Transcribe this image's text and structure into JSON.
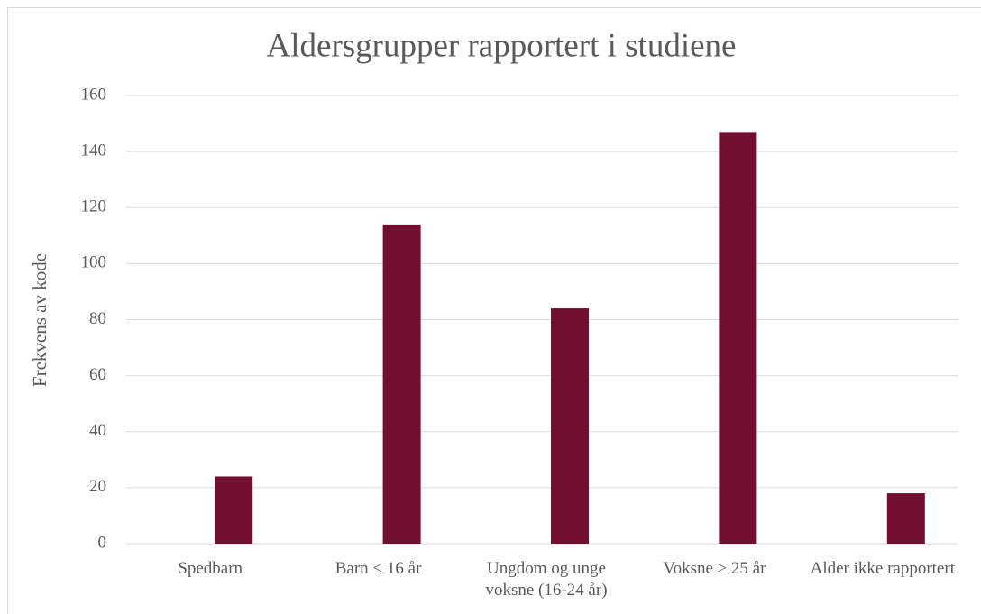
{
  "chart_data": {
    "type": "bar",
    "title": "Aldersgrupper rapportert i studiene",
    "y_label": "Frekvens av kode",
    "categories": [
      "Spedbarn",
      "Barn < 16 år",
      "Ungdom og unge voksne (16-24 år)",
      "Voksne ≥ 25 år",
      "Alder ikke rapportert"
    ],
    "values": [
      24,
      114,
      84,
      147,
      18
    ],
    "color": "#720e2f",
    "ylim": [
      0,
      160
    ],
    "yticks": [
      0,
      20,
      40,
      60,
      80,
      100,
      120,
      140,
      160
    ],
    "grid": true
  }
}
